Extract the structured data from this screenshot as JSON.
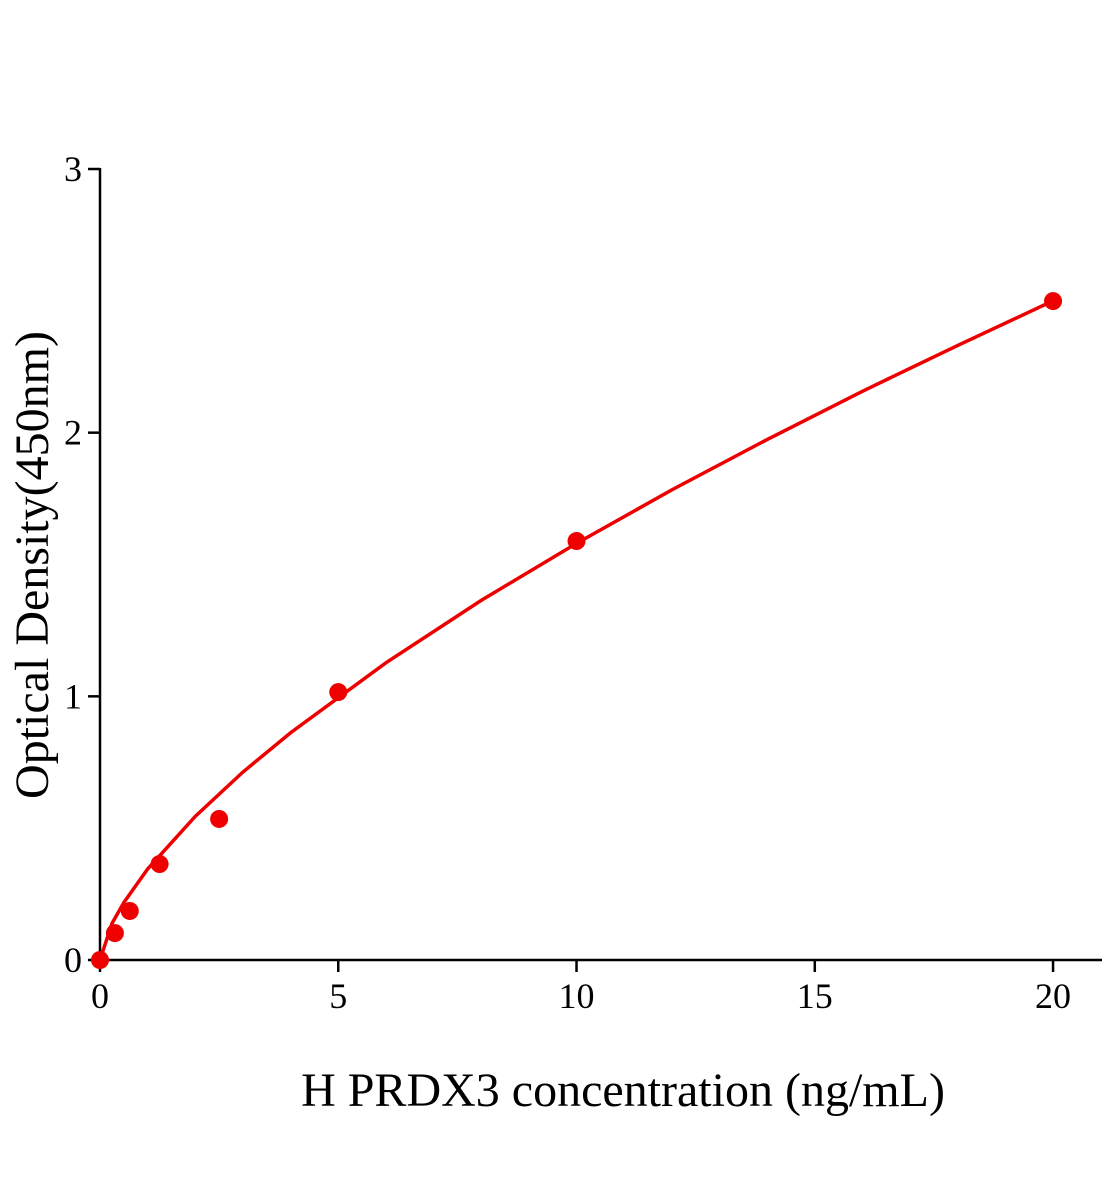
{
  "chart_data": {
    "type": "scatter",
    "x_label": "H PRDX3 concentration (ng/mL)",
    "y_label": "Optical Density(450nm)",
    "series": [
      {
        "type": "scatter",
        "color": "#ee0000",
        "x": [
          0,
          0.3125,
          0.625,
          1.25,
          2.5,
          5,
          10,
          20
        ],
        "values": [
          0,
          0.102,
          0.186,
          0.364,
          0.535,
          1.016,
          1.589,
          2.499
        ]
      },
      {
        "type": "line",
        "color": "#ee0000",
        "x": [
          0,
          0.25,
          0.5,
          1,
          2,
          3,
          4,
          6,
          8,
          10,
          12,
          14,
          16,
          18,
          20
        ],
        "values": [
          0,
          0.138,
          0.218,
          0.345,
          0.545,
          0.713,
          0.862,
          1.127,
          1.364,
          1.58,
          1.783,
          1.974,
          2.157,
          2.331,
          2.5
        ]
      }
    ],
    "xlim": [
      0,
      21
    ],
    "ylim": [
      0,
      3
    ],
    "xticks": [
      0,
      5,
      10,
      15,
      20
    ],
    "yticks": [
      0,
      1,
      2,
      3
    ]
  }
}
